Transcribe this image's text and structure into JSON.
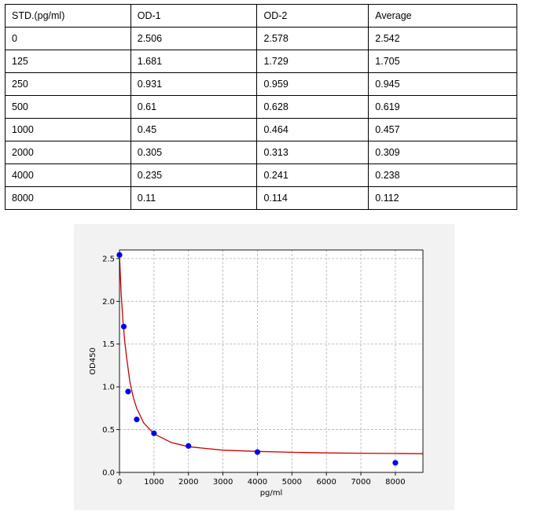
{
  "table": {
    "headers": [
      "STD.(pg/ml)",
      "OD-1",
      "OD-2",
      "Average"
    ],
    "rows": [
      [
        "0",
        "2.506",
        "2.578",
        "2.542"
      ],
      [
        "125",
        "1.681",
        "1.729",
        "1.705"
      ],
      [
        "250",
        "0.931",
        "0.959",
        "0.945"
      ],
      [
        "500",
        "0.61",
        "0.628",
        "0.619"
      ],
      [
        "1000",
        "0.45",
        "0.464",
        "0.457"
      ],
      [
        "2000",
        "0.305",
        "0.313",
        "0.309"
      ],
      [
        "4000",
        "0.235",
        "0.241",
        "0.238"
      ],
      [
        "8000",
        "0.11",
        "0.114",
        "0.112"
      ]
    ]
  },
  "chart_data": {
    "type": "scatter",
    "title": "",
    "xlabel": "pg/ml",
    "ylabel": "OD450",
    "xlim": [
      0,
      8800
    ],
    "ylim": [
      0,
      2.6
    ],
    "xticks": [
      0,
      1000,
      2000,
      3000,
      4000,
      5000,
      6000,
      7000,
      8000
    ],
    "yticks": [
      0.0,
      0.5,
      1.0,
      1.5,
      2.0,
      2.5
    ],
    "xtick_labels": [
      "0",
      "1000",
      "2000",
      "3000",
      "4000",
      "5000",
      "6000",
      "7000",
      "8000"
    ],
    "ytick_labels": [
      "0.0",
      "0.5",
      "1.0",
      "1.5",
      "2.0",
      "2.5"
    ],
    "grid": true,
    "series": [
      {
        "kind": "points",
        "color": "#0000ee",
        "x": [
          0,
          125,
          250,
          500,
          1000,
          2000,
          4000,
          8000
        ],
        "y": [
          2.542,
          1.705,
          0.945,
          0.619,
          0.457,
          0.309,
          0.238,
          0.112
        ]
      },
      {
        "kind": "fit-curve",
        "color": "#cc0000",
        "x": [
          0,
          50,
          100,
          150,
          200,
          300,
          400,
          500,
          700,
          1000,
          1500,
          2000,
          3000,
          4000,
          5000,
          6000,
          7000,
          8000,
          8800
        ],
        "y": [
          2.52,
          2.08,
          1.77,
          1.54,
          1.36,
          1.06,
          0.88,
          0.75,
          0.58,
          0.45,
          0.35,
          0.3,
          0.26,
          0.245,
          0.235,
          0.228,
          0.224,
          0.221,
          0.219
        ]
      }
    ]
  }
}
